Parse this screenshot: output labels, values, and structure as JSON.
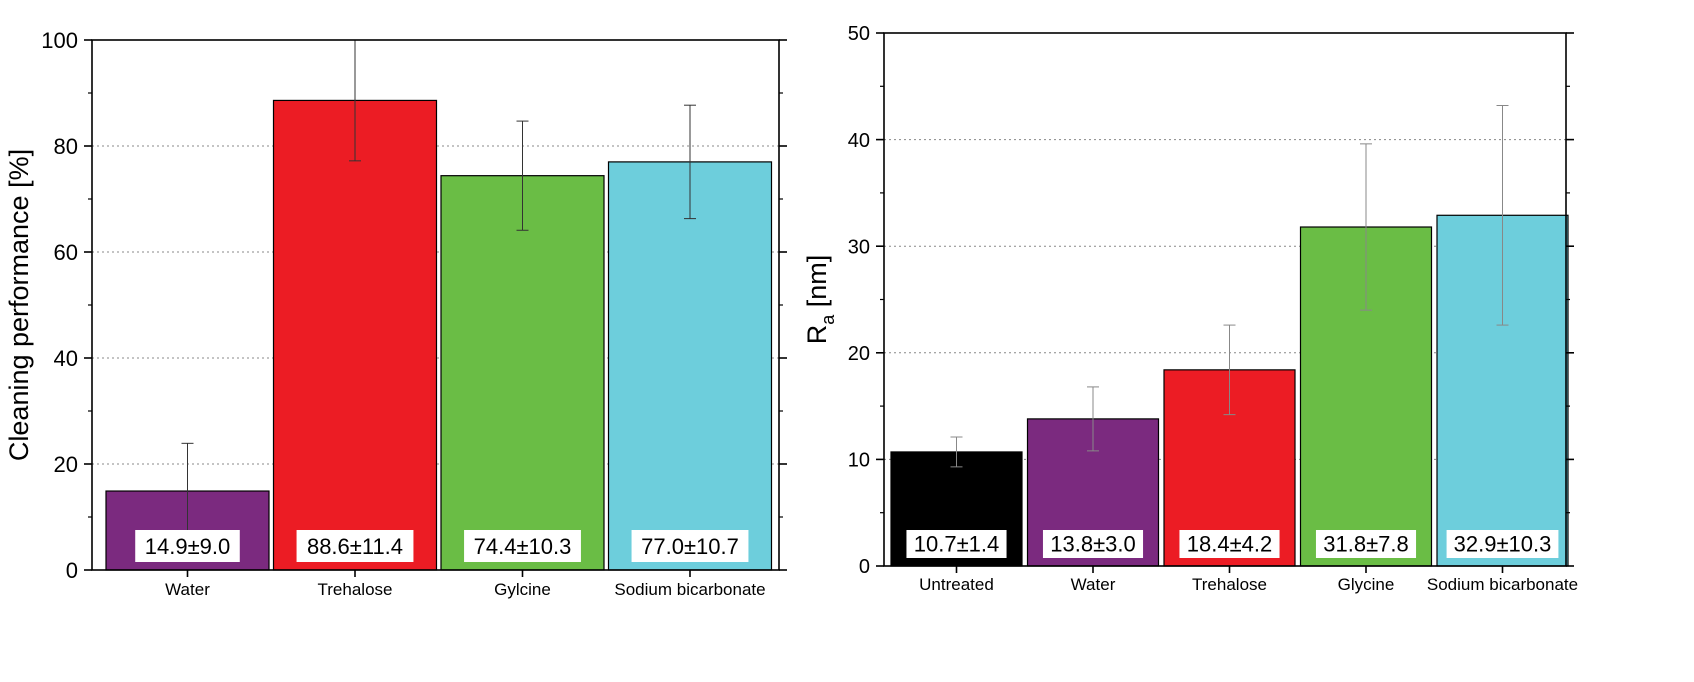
{
  "chart_data": [
    {
      "type": "bar",
      "categories": [
        "Water",
        "Trehalose",
        "Gylcine",
        "Sodium bicarbonate"
      ],
      "values": [
        14.9,
        88.6,
        74.4,
        77.0
      ],
      "errors": [
        9.0,
        11.4,
        10.3,
        10.7
      ],
      "value_labels": [
        "14.9±9.0",
        "88.6±11.4",
        "74.4±10.3",
        "77.0±10.7"
      ],
      "colors": [
        "#7b2a7f",
        "#ec1c24",
        "#6abd45",
        "#6dcedc"
      ],
      "title": "",
      "xlabel": "",
      "ylabel": "Cleaning performance [%]",
      "ylim": [
        0,
        100
      ],
      "yticks": [
        0,
        20,
        40,
        60,
        80,
        100
      ],
      "grid": true
    },
    {
      "type": "bar",
      "categories": [
        "Untreated",
        "Water",
        "Trehalose",
        "Glycine",
        "Sodium bicarbonate"
      ],
      "values": [
        10.7,
        13.8,
        18.4,
        31.8,
        32.9
      ],
      "errors": [
        1.4,
        3.0,
        4.2,
        7.8,
        10.3
      ],
      "value_labels": [
        "10.7±1.4",
        "13.8±3.0",
        "18.4±4.2",
        "31.8±7.8",
        "32.9±10.3"
      ],
      "colors": [
        "#000000",
        "#7b2a7f",
        "#ec1c24",
        "#6abd45",
        "#6dcedc"
      ],
      "title": "",
      "xlabel": "",
      "ylabel": "R",
      "ylabel_sub": "a",
      "ylabel_unit": " [nm]",
      "ylim": [
        0,
        50
      ],
      "yticks": [
        0,
        10,
        20,
        30,
        40,
        50
      ],
      "grid": true
    }
  ]
}
